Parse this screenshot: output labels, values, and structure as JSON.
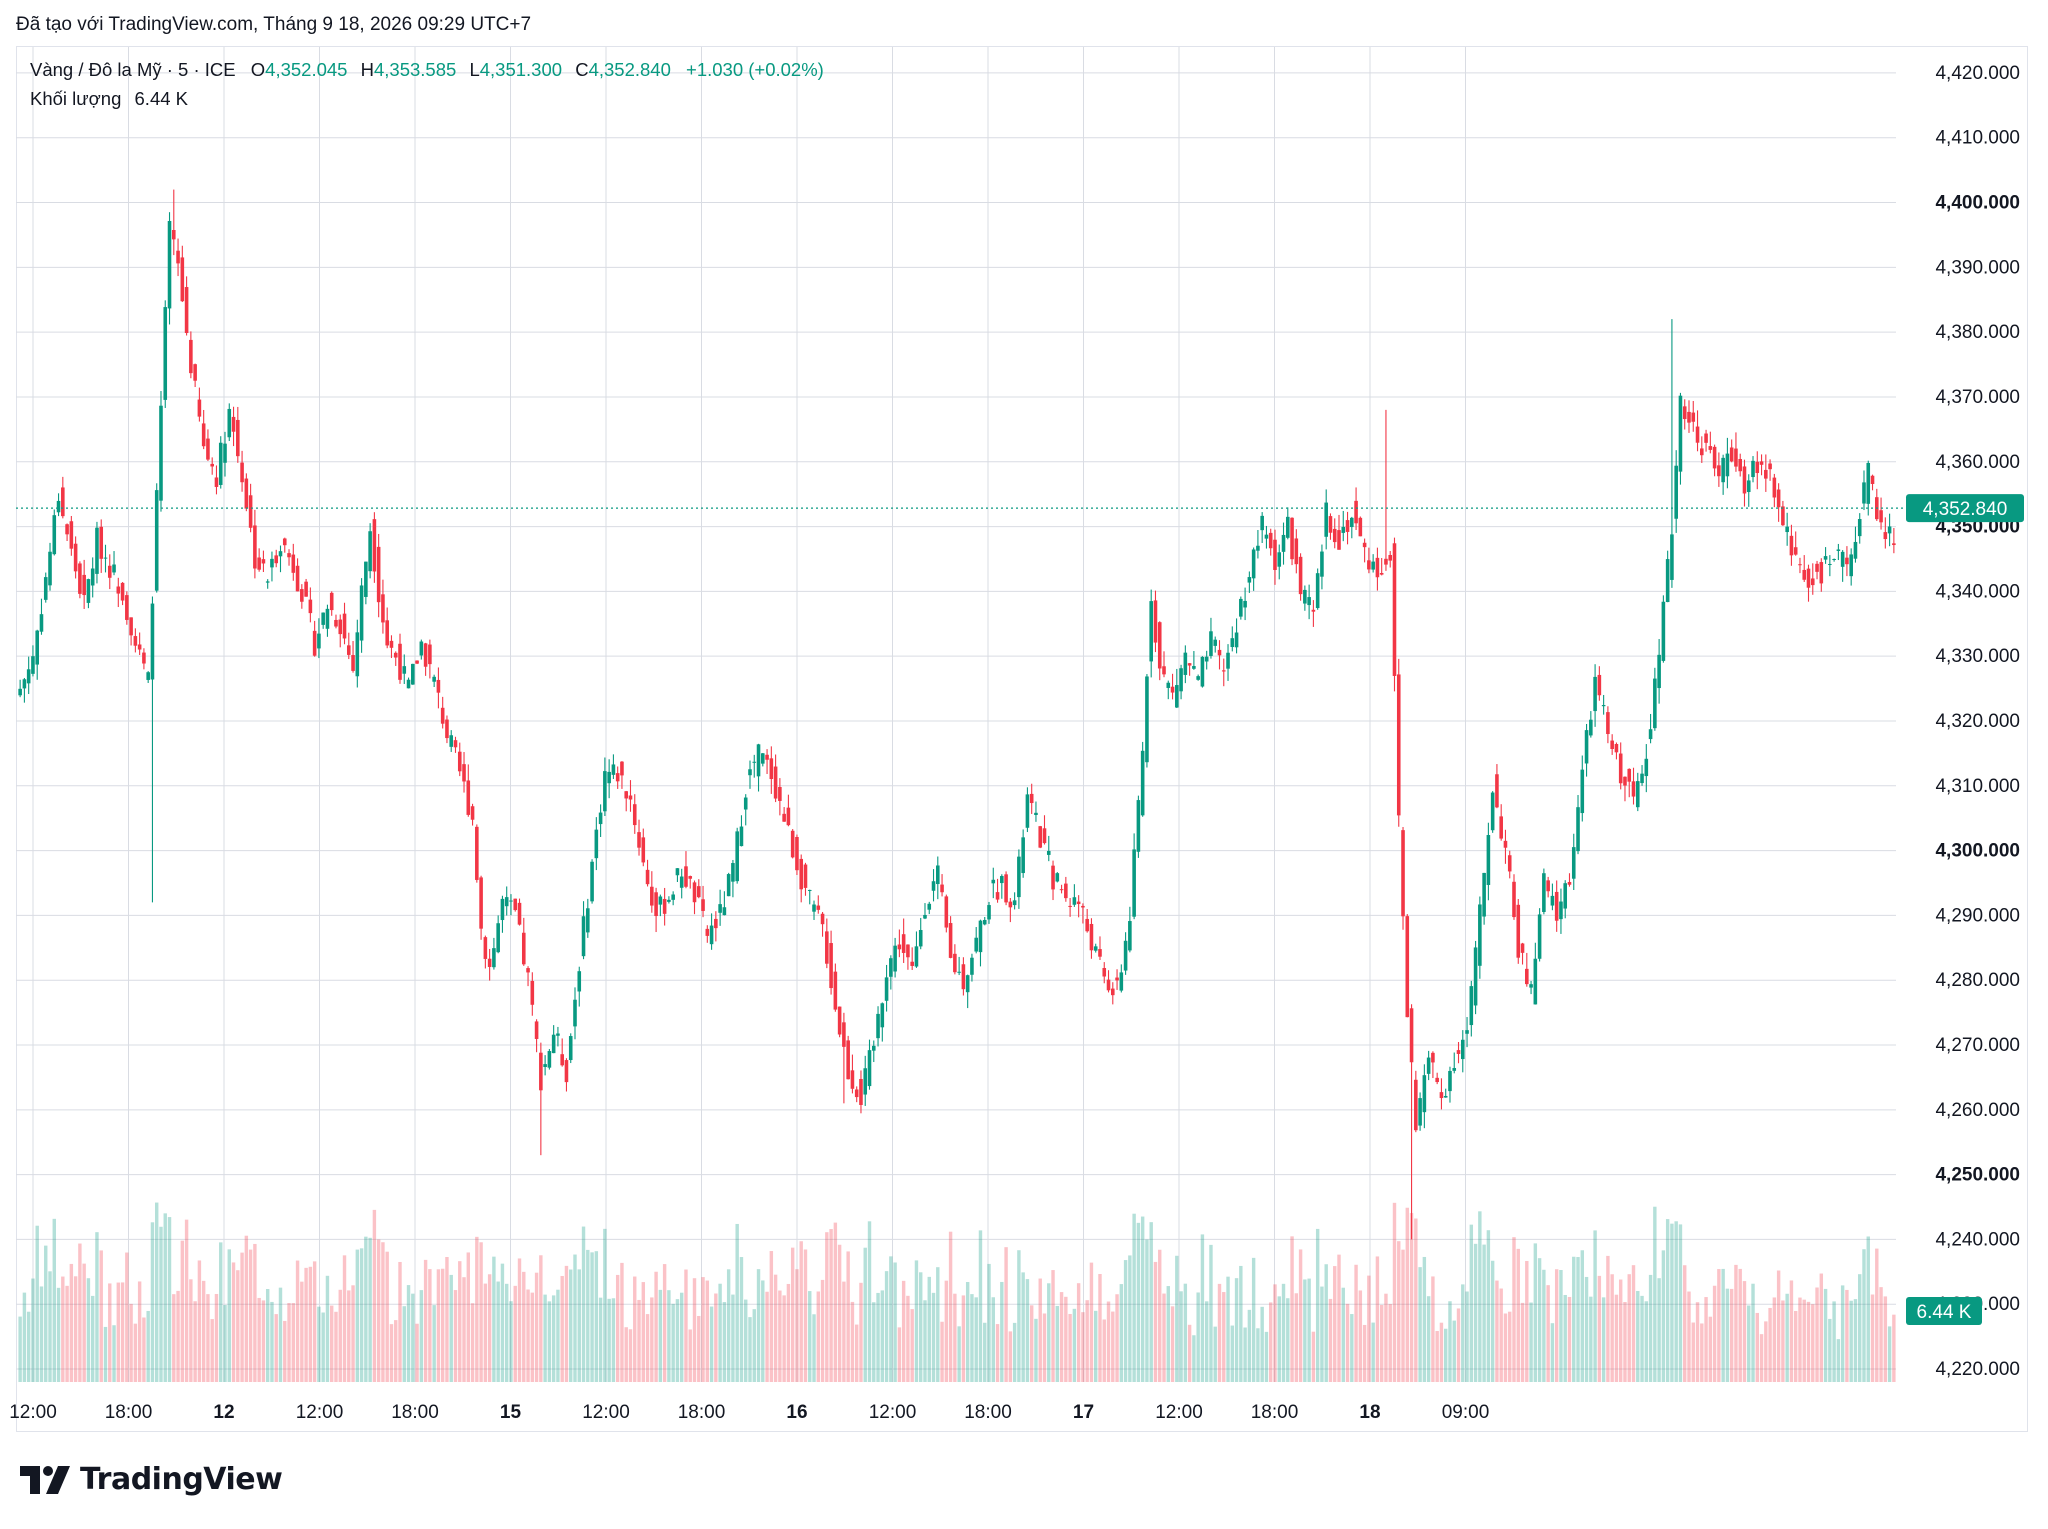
{
  "header": {
    "watermark": "Đã tạo với TradingView.com, Tháng 9 18, 2026 09:29 UTC+7"
  },
  "legend": {
    "symbol": "Vàng / Đô la Mỹ · 5 · ICE",
    "open_label": "O",
    "open": "4,352.045",
    "high_label": "H",
    "high": "4,353.585",
    "low_label": "L",
    "low": "4,351.300",
    "close_label": "C",
    "close": "4,352.840",
    "change": "+1.030 (+0.02%)",
    "volume_label": "Khối lượng",
    "volume": "6.44 K"
  },
  "brand": {
    "name": "TradingView"
  },
  "colors": {
    "up": "#089981",
    "down": "#f23645",
    "grid": "#d9dce3",
    "price_label_bg": "#089981"
  },
  "chart_data": {
    "type": "candlestick",
    "title": "Vàng / Đô la Mỹ · 5 · ICE",
    "y_axis": {
      "ticks": [
        "4,420.000",
        "4,410.000",
        "4,400.000",
        "4,390.000",
        "4,380.000",
        "4,370.000",
        "4,360.000",
        "4,350.000",
        "4,340.000",
        "4,330.000",
        "4,320.000",
        "4,310.000",
        "4,300.000",
        "4,290.000",
        "4,280.000",
        "4,270.000",
        "4,260.000",
        "4,250.000",
        "4,240.000",
        "4,230.000",
        "4,220.000"
      ],
      "bold_ticks": [
        "4,400.000",
        "4,350.000",
        "4,300.000",
        "4,250.000"
      ],
      "range": [
        4218,
        4424
      ]
    },
    "x_axis": {
      "ticks": [
        {
          "label": "12:00",
          "bold": false
        },
        {
          "label": "18:00",
          "bold": false
        },
        {
          "label": "12",
          "bold": true
        },
        {
          "label": "12:00",
          "bold": false
        },
        {
          "label": "18:00",
          "bold": false
        },
        {
          "label": "15",
          "bold": true
        },
        {
          "label": "12:00",
          "bold": false
        },
        {
          "label": "18:00",
          "bold": false
        },
        {
          "label": "16",
          "bold": true
        },
        {
          "label": "12:00",
          "bold": false
        },
        {
          "label": "18:00",
          "bold": false
        },
        {
          "label": "17",
          "bold": true
        },
        {
          "label": "12:00",
          "bold": false
        },
        {
          "label": "18:00",
          "bold": false
        },
        {
          "label": "18",
          "bold": true
        },
        {
          "label": "09:00",
          "bold": false
        }
      ]
    },
    "last_price": 4352.84,
    "last_price_label": "4,352.840",
    "volume_label": "6.44 K",
    "price_path": [
      [
        0,
        4325
      ],
      [
        3,
        4330
      ],
      [
        6,
        4342
      ],
      [
        9,
        4355
      ],
      [
        12,
        4346
      ],
      [
        15,
        4338
      ],
      [
        18,
        4348
      ],
      [
        21,
        4344
      ],
      [
        24,
        4340
      ],
      [
        27,
        4332
      ],
      [
        30,
        4326
      ],
      [
        31,
        4340
      ],
      [
        33,
        4368
      ],
      [
        35,
        4396
      ],
      [
        37,
        4390
      ],
      [
        40,
        4375
      ],
      [
        43,
        4362
      ],
      [
        46,
        4358
      ],
      [
        49,
        4368
      ],
      [
        52,
        4358
      ],
      [
        55,
        4345
      ],
      [
        58,
        4342
      ],
      [
        61,
        4348
      ],
      [
        64,
        4344
      ],
      [
        66,
        4340
      ],
      [
        69,
        4332
      ],
      [
        72,
        4338
      ],
      [
        75,
        4335
      ],
      [
        78,
        4328
      ],
      [
        80,
        4340
      ],
      [
        82,
        4350
      ],
      [
        84,
        4340
      ],
      [
        86,
        4332
      ],
      [
        88,
        4330
      ],
      [
        91,
        4325
      ],
      [
        94,
        4332
      ],
      [
        97,
        4326
      ],
      [
        100,
        4318
      ],
      [
        103,
        4312
      ],
      [
        106,
        4305
      ],
      [
        108,
        4288
      ],
      [
        110,
        4282
      ],
      [
        113,
        4292
      ],
      [
        116,
        4290
      ],
      [
        119,
        4280
      ],
      [
        122,
        4265
      ],
      [
        125,
        4272
      ],
      [
        128,
        4266
      ],
      [
        131,
        4283
      ],
      [
        134,
        4298
      ],
      [
        137,
        4312
      ],
      [
        140,
        4312
      ],
      [
        143,
        4308
      ],
      [
        146,
        4298
      ],
      [
        149,
        4290
      ],
      [
        152,
        4293
      ],
      [
        155,
        4297
      ],
      [
        158,
        4293
      ],
      [
        161,
        4287
      ],
      [
        164,
        4290
      ],
      [
        167,
        4297
      ],
      [
        170,
        4310
      ],
      [
        173,
        4315
      ],
      [
        176,
        4312
      ],
      [
        179,
        4305
      ],
      [
        182,
        4298
      ],
      [
        185,
        4292
      ],
      [
        188,
        4288
      ],
      [
        191,
        4276
      ],
      [
        194,
        4266
      ],
      [
        197,
        4262
      ],
      [
        200,
        4270
      ],
      [
        203,
        4282
      ],
      [
        206,
        4286
      ],
      [
        209,
        4281
      ],
      [
        212,
        4292
      ],
      [
        215,
        4296
      ],
      [
        218,
        4283
      ],
      [
        221,
        4280
      ],
      [
        224,
        4286
      ],
      [
        227,
        4293
      ],
      [
        230,
        4295
      ],
      [
        233,
        4292
      ],
      [
        236,
        4308
      ],
      [
        239,
        4302
      ],
      [
        242,
        4296
      ],
      [
        245,
        4293
      ],
      [
        248,
        4292
      ],
      [
        251,
        4286
      ],
      [
        254,
        4280
      ],
      [
        257,
        4278
      ],
      [
        260,
        4290
      ],
      [
        263,
        4315
      ],
      [
        265,
        4340
      ],
      [
        267,
        4328
      ],
      [
        270,
        4324
      ],
      [
        273,
        4330
      ],
      [
        276,
        4326
      ],
      [
        279,
        4332
      ],
      [
        282,
        4328
      ],
      [
        285,
        4335
      ],
      [
        288,
        4343
      ],
      [
        291,
        4350
      ],
      [
        294,
        4345
      ],
      [
        297,
        4350
      ],
      [
        300,
        4340
      ],
      [
        303,
        4336
      ],
      [
        306,
        4352
      ],
      [
        309,
        4348
      ],
      [
        312,
        4352
      ],
      [
        315,
        4346
      ],
      [
        318,
        4343
      ],
      [
        321,
        4346
      ],
      [
        323,
        4305
      ],
      [
        325,
        4275
      ],
      [
        327,
        4258
      ],
      [
        330,
        4268
      ],
      [
        333,
        4262
      ],
      [
        336,
        4268
      ],
      [
        339,
        4272
      ],
      [
        342,
        4290
      ],
      [
        345,
        4310
      ],
      [
        348,
        4300
      ],
      [
        351,
        4285
      ],
      [
        354,
        4278
      ],
      [
        357,
        4295
      ],
      [
        360,
        4290
      ],
      [
        363,
        4296
      ],
      [
        366,
        4312
      ],
      [
        369,
        4326
      ],
      [
        372,
        4318
      ],
      [
        375,
        4312
      ],
      [
        378,
        4308
      ],
      [
        381,
        4316
      ],
      [
        384,
        4330
      ],
      [
        387,
        4350
      ],
      [
        389,
        4370
      ],
      [
        392,
        4365
      ],
      [
        395,
        4362
      ],
      [
        398,
        4358
      ],
      [
        401,
        4362
      ],
      [
        404,
        4355
      ],
      [
        407,
        4360
      ],
      [
        410,
        4358
      ],
      [
        413,
        4350
      ],
      [
        416,
        4345
      ],
      [
        419,
        4342
      ],
      [
        422,
        4343
      ],
      [
        425,
        4345
      ],
      [
        428,
        4344
      ],
      [
        431,
        4352
      ],
      [
        433,
        4358
      ],
      [
        436,
        4350
      ],
      [
        439,
        4348
      ]
    ],
    "spikes": [
      {
        "i": 31,
        "low": 4292
      },
      {
        "i": 36,
        "high": 4402
      },
      {
        "i": 122,
        "low": 4253
      },
      {
        "i": 193,
        "low": 4261
      },
      {
        "i": 320,
        "high": 4368
      },
      {
        "i": 326,
        "low": 4240
      },
      {
        "i": 387,
        "high": 4382
      }
    ]
  }
}
